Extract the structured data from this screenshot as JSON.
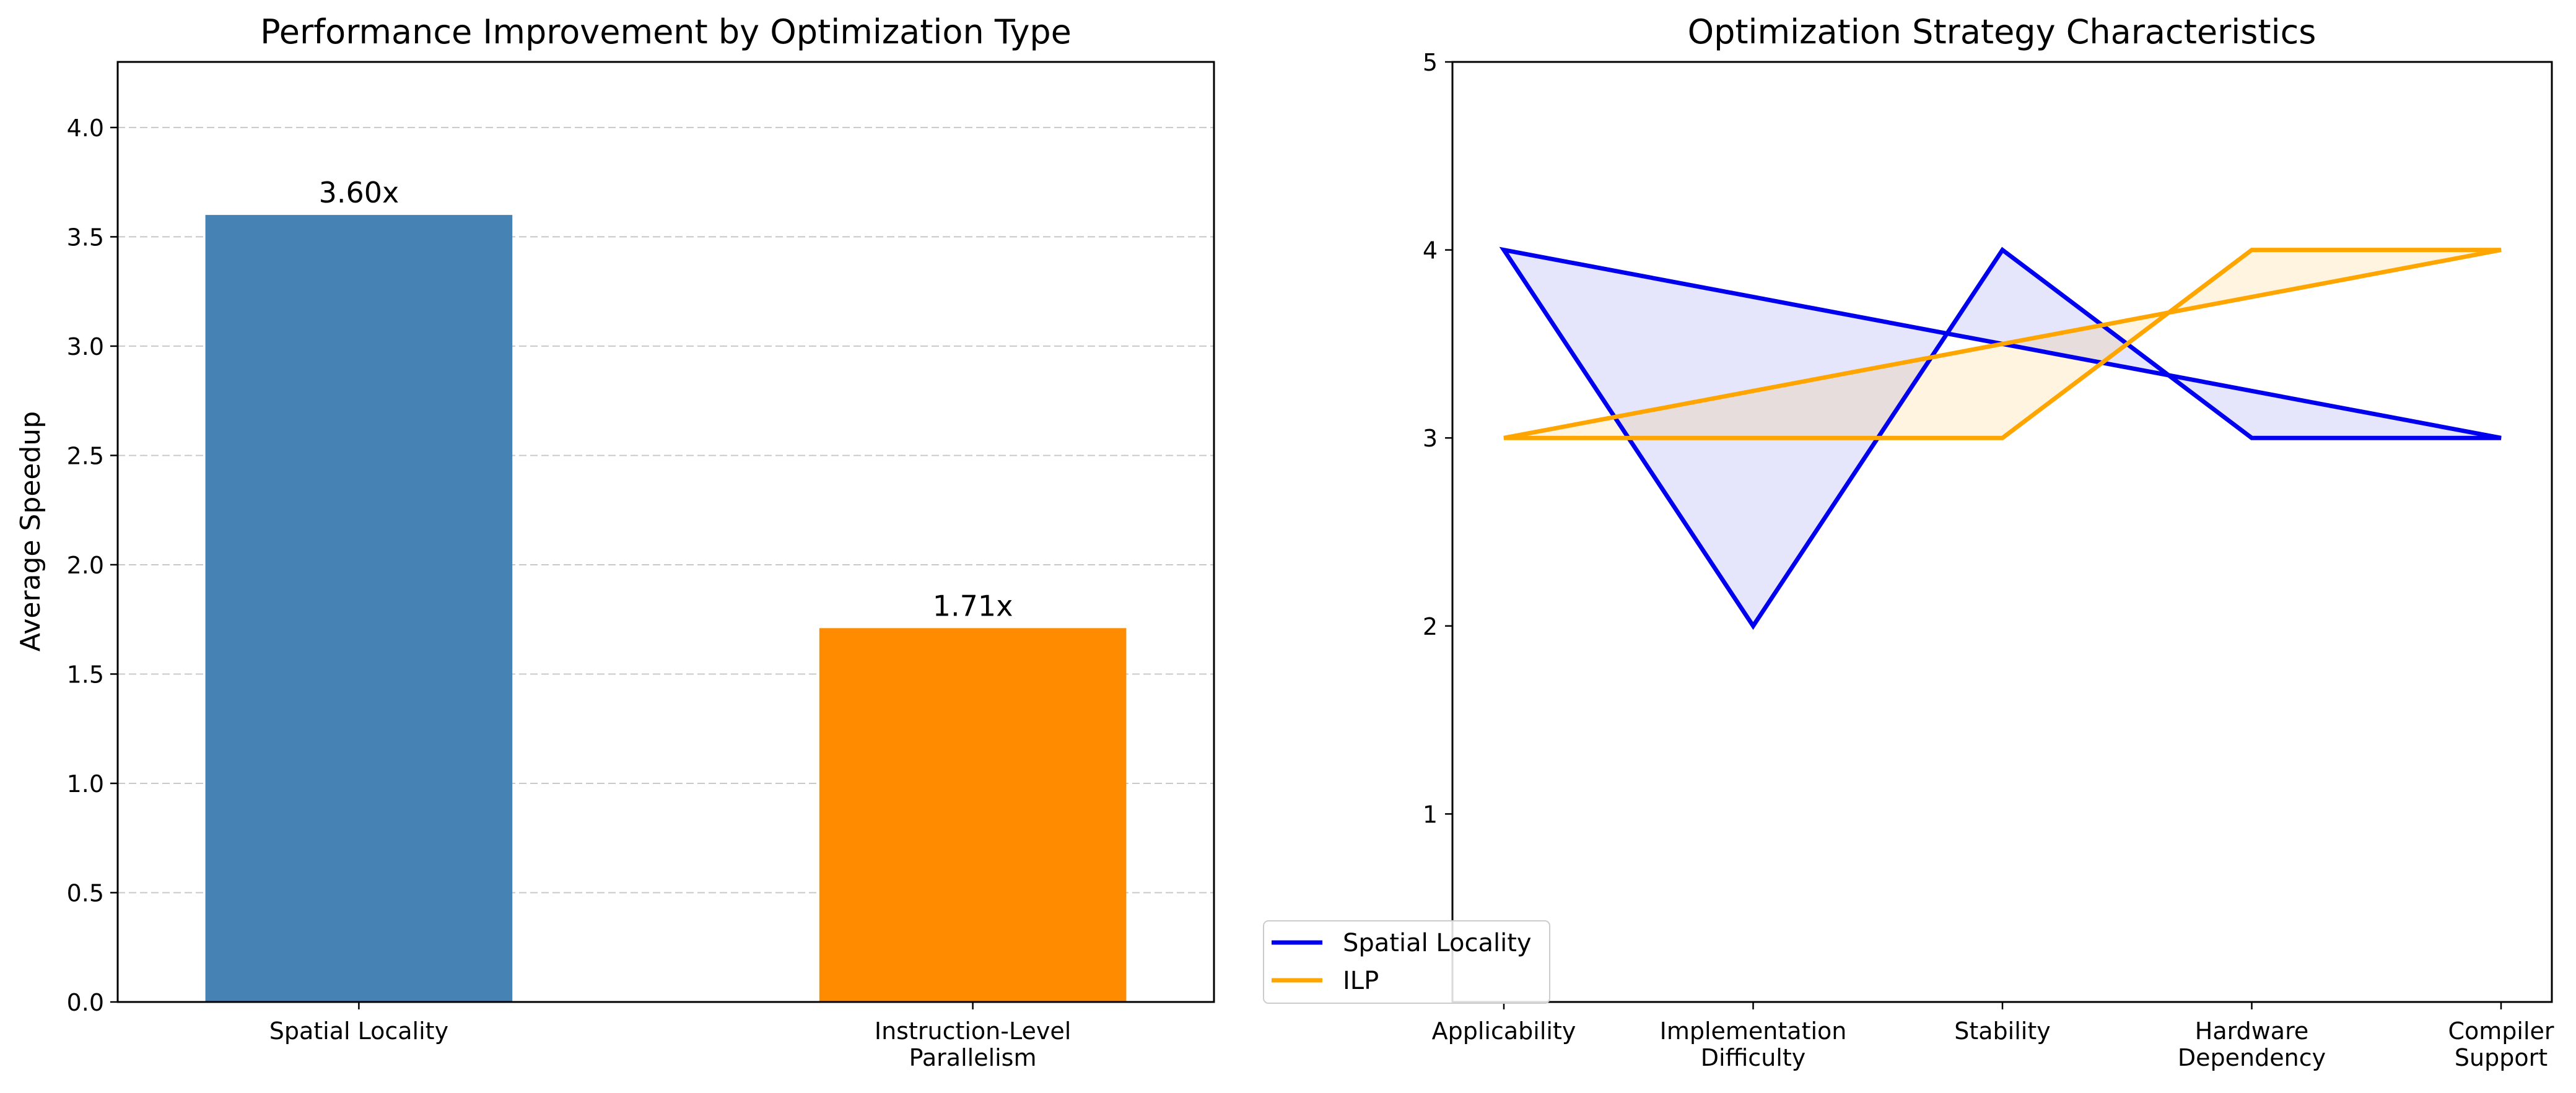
{
  "chart_data": [
    {
      "type": "bar",
      "title": "Performance Improvement by Optimization Type",
      "xlabel": "",
      "ylabel": "Average Speedup",
      "categories": [
        "Spatial Locality",
        "Instruction-Level\nParallelism"
      ],
      "values": [
        3.6,
        1.71
      ],
      "value_labels": [
        "3.60x",
        "1.71x"
      ],
      "colors": [
        "#4682B4",
        "#FF8C00"
      ],
      "ylim": [
        0,
        4.3
      ],
      "yticks": [
        0.0,
        0.5,
        1.0,
        1.5,
        2.0,
        2.5,
        3.0,
        3.5,
        4.0
      ],
      "ytick_labels": [
        "0.0",
        "0.5",
        "1.0",
        "1.5",
        "2.0",
        "2.5",
        "3.0",
        "3.5",
        "4.0"
      ],
      "grid": "y-dashed"
    },
    {
      "type": "line",
      "title": "Optimization Strategy Characteristics",
      "xlabel": "",
      "ylabel": "",
      "categories": [
        "Applicability",
        "Implementation\nDifficulty",
        "Stability",
        "Hardware\nDependency",
        "Compiler\nSupport"
      ],
      "ylim": [
        0,
        5
      ],
      "yticks": [
        1,
        2,
        3,
        4,
        5
      ],
      "ytick_labels": [
        "1",
        "2",
        "3",
        "4",
        "5"
      ],
      "closed_fill": true,
      "legend": "bottom-left",
      "series": [
        {
          "name": "Spatial Locality",
          "values": [
            4,
            2,
            4,
            3,
            3
          ],
          "color": "#0000EE",
          "fill": "rgba(0,0,230,0.10)"
        },
        {
          "name": "ILP",
          "values": [
            3,
            3,
            3,
            4,
            4
          ],
          "color": "#FFA500",
          "fill": "rgba(255,165,0,0.12)"
        }
      ]
    }
  ]
}
